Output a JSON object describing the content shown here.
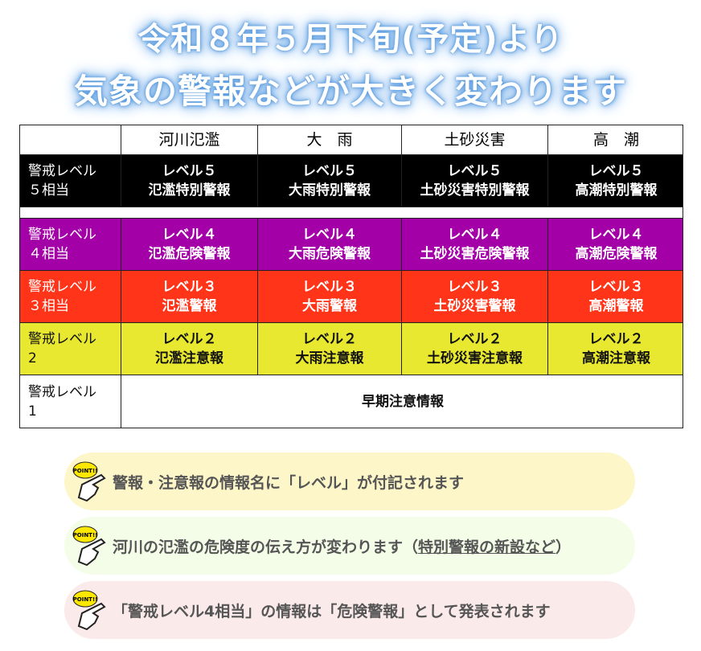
{
  "title": {
    "line1": "令和８年５月下旬(予定)より",
    "line2": "気象の警報などが大きく変わります"
  },
  "table": {
    "headers": [
      "",
      "河川氾濫",
      "大　雨",
      "土砂災害",
      "高　潮"
    ],
    "rows": [
      {
        "label1": "警戒レベル",
        "label2": "５相当",
        "color": "#000000",
        "cells": [
          [
            "レベル５",
            "氾濫特別警報"
          ],
          [
            "レベル５",
            "大雨特別警報"
          ],
          [
            "レベル５",
            "土砂災害特別警報"
          ],
          [
            "レベル５",
            "高潮特別警報"
          ]
        ]
      },
      {
        "label1": "警戒レベル",
        "label2": "４相当",
        "color": "#a400a8",
        "cells": [
          [
            "レベル４",
            "氾濫危険警報"
          ],
          [
            "レベル４",
            "大雨危険警報"
          ],
          [
            "レベル４",
            "土砂災害危険警報"
          ],
          [
            "レベル４",
            "高潮危険警報"
          ]
        ]
      },
      {
        "label1": "警戒レベル",
        "label2": "３相当",
        "color": "#ff3419",
        "cells": [
          [
            "レベル３",
            "氾濫警報"
          ],
          [
            "レベル３",
            "大雨警報"
          ],
          [
            "レベル３",
            "土砂災害警報"
          ],
          [
            "レベル３",
            "高潮警報"
          ]
        ]
      },
      {
        "label1": "警戒レベル",
        "label2": "2",
        "color": "#e8e830",
        "cells": [
          [
            "レベル２",
            "氾濫注意報"
          ],
          [
            "レベル２",
            "大雨注意報"
          ],
          [
            "レベル２",
            "土砂災害注意報"
          ],
          [
            "レベル２",
            "高潮注意報"
          ]
        ]
      },
      {
        "label1": "警戒レベル",
        "label2": "1",
        "cells_merged": "早期注意情報"
      }
    ]
  },
  "points": {
    "icon": "pointing-hand-point-icon",
    "badge": "POINT!!",
    "p1": "警報・注意報の情報名に「レベル」が付記されます",
    "p2_main": "河川の氾濫の危険度の伝え方が変わります（",
    "p2_underlined": "特別警報の新設など",
    "p2_end": "）",
    "p3": "「警戒レベル4相当」の情報は「危険警報」として発表されます"
  }
}
